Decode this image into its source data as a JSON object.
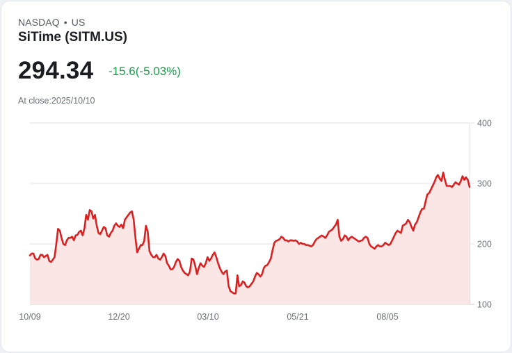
{
  "header": {
    "exchange": "NASDAQ",
    "separator": "•",
    "region": "US",
    "title": "SiTime (SITM.US)",
    "price": "294.34",
    "change": "-15.6(-5.03%)",
    "as_of": "At close:2025/10/10"
  },
  "colors": {
    "line": "#d92121",
    "fill": "#fbe6e6",
    "change_text": "#16a34a",
    "grid": "#e2e2e2"
  },
  "chart_data": {
    "type": "area",
    "title": "SiTime (SITM.US)",
    "xlabel": "",
    "ylabel": "",
    "ylim": [
      100,
      400
    ],
    "yticks": [
      100,
      200,
      300,
      400
    ],
    "xtick_labels": [
      "10/09",
      "12/20",
      "03/10",
      "05/21",
      "08/05"
    ],
    "xtick_index": [
      0,
      50,
      100,
      150,
      200
    ],
    "grid": true,
    "y_axis_position": "right",
    "values": [
      181,
      184,
      184,
      176,
      174,
      175,
      182,
      182,
      178,
      180,
      182,
      172,
      170,
      174,
      178,
      200,
      225,
      222,
      210,
      200,
      198,
      206,
      210,
      210,
      212,
      206,
      214,
      215,
      220,
      222,
      214,
      226,
      248,
      240,
      256,
      254,
      242,
      248,
      230,
      218,
      216,
      222,
      228,
      226,
      214,
      212,
      218,
      222,
      230,
      234,
      230,
      228,
      232,
      226,
      240,
      244,
      248,
      252,
      254,
      240,
      210,
      186,
      192,
      198,
      198,
      205,
      230,
      220,
      188,
      182,
      178,
      178,
      182,
      176,
      174,
      178,
      184,
      180,
      168,
      164,
      158,
      158,
      162,
      170,
      175,
      172,
      162,
      156,
      152,
      150,
      148,
      154,
      176,
      174,
      164,
      150,
      160,
      168,
      164,
      162,
      168,
      178,
      172,
      176,
      182,
      186,
      178,
      168,
      160,
      154,
      150,
      154,
      156,
      130,
      122,
      120,
      118,
      118,
      148,
      130,
      132,
      138,
      136,
      130,
      128,
      130,
      134,
      138,
      146,
      152,
      150,
      146,
      150,
      160,
      164,
      165,
      170,
      176,
      190,
      202,
      205,
      206,
      208,
      212,
      210,
      206,
      206,
      204,
      206,
      206,
      205,
      206,
      204,
      200,
      202,
      200,
      200,
      198,
      198,
      197,
      196,
      198,
      204,
      208,
      210,
      212,
      214,
      212,
      210,
      214,
      220,
      222,
      224,
      228,
      232,
      240,
      212,
      205,
      208,
      214,
      212,
      206,
      210,
      212,
      210,
      208,
      206,
      204,
      205,
      206,
      210,
      212,
      210,
      200,
      196,
      194,
      192,
      196,
      198,
      196,
      196,
      198,
      202,
      200,
      198,
      200,
      206,
      212,
      218,
      222,
      220,
      218,
      230,
      232,
      234,
      240,
      236,
      228,
      222,
      232,
      236,
      244,
      252,
      258,
      258,
      270,
      282,
      284,
      290,
      296,
      302,
      310,
      314,
      308,
      304,
      318,
      306,
      296,
      296,
      296,
      294,
      298,
      302,
      300,
      298,
      304,
      312,
      306,
      310,
      306,
      294
    ]
  },
  "x_axis_labels": [
    "10/09",
    "12/20",
    "03/10",
    "05/21",
    "08/05"
  ],
  "y_axis_labels": [
    "400",
    "300",
    "200",
    "100"
  ]
}
